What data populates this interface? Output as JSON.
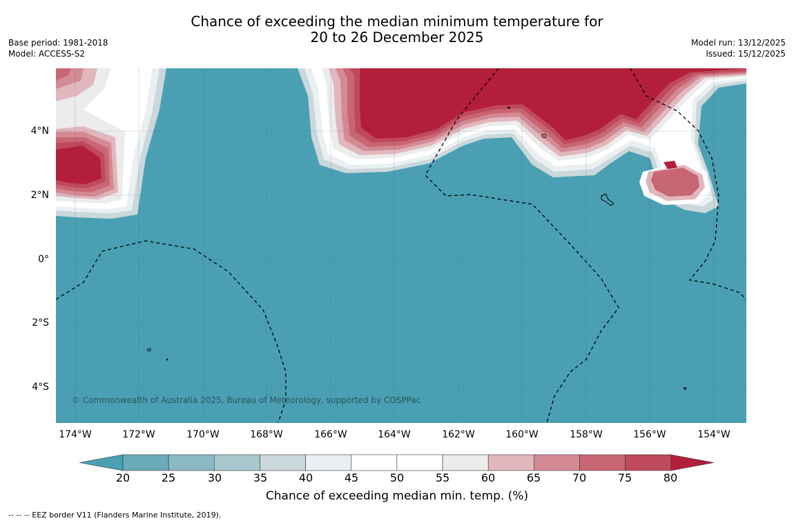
{
  "title_line1": "Chance of exceeding the median minimum temperature for",
  "title_line2": "20 to 26 December 2025",
  "meta_left": [
    "Base period: 1981-2018",
    "Model: ACCESS-S2"
  ],
  "meta_right": [
    "Model run: 13/12/2025",
    "Issued: 15/12/2025"
  ],
  "copyright": "© Commonwealth of Australia 2025, Bureau of Meteorology, supported by COSPPac",
  "lat_labels": [
    "4°N",
    "2°N",
    "0°",
    "2°S",
    "4°S"
  ],
  "lon_labels": [
    "174°W",
    "172°W",
    "170°W",
    "168°W",
    "166°W",
    "164°W",
    "162°W",
    "160°W",
    "158°W",
    "156°W",
    "154°W"
  ],
  "colorbar": {
    "ticks": [
      "20",
      "25",
      "30",
      "35",
      "40",
      "45",
      "50",
      "55",
      "60",
      "65",
      "70",
      "75",
      "80"
    ],
    "colors": [
      "#4aa0b2",
      "#6aaab9",
      "#8ab8c4",
      "#a9c7ce",
      "#cbd8db",
      "#eaf0f2",
      "#ffffff",
      "#ffffff",
      "#ececec",
      "#e1b7bd",
      "#d48a95",
      "#c96673",
      "#bf4a5b",
      "#b31e3a"
    ],
    "label": "Chance of exceeding median min. temp. (%)"
  },
  "footnote": "--  --  -- EEZ border V11 (Flanders Marine Institute, 2019)."
}
